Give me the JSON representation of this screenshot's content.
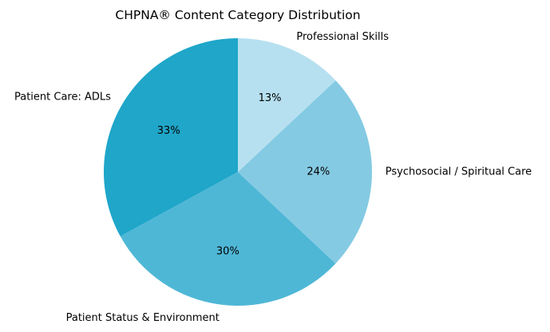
{
  "chart_data": {
    "type": "pie",
    "title": "CHPNA® Content Category Distribution",
    "slices": [
      {
        "label": "Patient Care: ADLs",
        "value": 33,
        "pct_label": "33%",
        "color": "#1fa6c9"
      },
      {
        "label": "Patient Status & Environment",
        "value": 30,
        "pct_label": "30%",
        "color": "#4fb7d6"
      },
      {
        "label": "Psychosocial / Spiritual Care",
        "value": 24,
        "pct_label": "24%",
        "color": "#84cae3"
      },
      {
        "label": "Professional Skills",
        "value": 13,
        "pct_label": "13%",
        "color": "#b6e0f0"
      }
    ],
    "start_angle_deg": 90,
    "direction": "counterclockwise",
    "legend": "none"
  }
}
